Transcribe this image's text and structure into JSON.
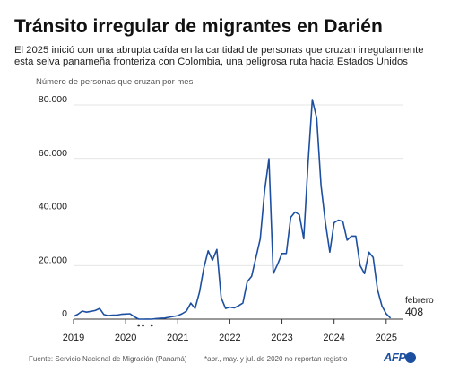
{
  "title": "Tránsito irregular de migrantes en Darién",
  "subtitle": "El 2025 inició con una abrupta caída en la cantidad de personas que cruzan irregularmente esta selva panameña fronteriza con Colombia,  una peligrosa ruta hacia Estados Unidos",
  "footer": {
    "source": "Fuente: Servicio Nacional de Migración (Panamá)",
    "note": "*abr., may. y jul. de 2020 no reportan registro",
    "logo": "AFP"
  },
  "colors": {
    "line": "#1d4fa0",
    "grid": "#dcdcdc",
    "text": "#1a1a1a",
    "logo": "#1d4fa0"
  },
  "chart_data": {
    "type": "line",
    "ylabel": "Número de personas que cruzan por mes",
    "ylim": [
      0,
      80000
    ],
    "yticks": [
      0,
      20000,
      40000,
      60000,
      80000
    ],
    "ytick_labels": [
      "0",
      "20.000",
      "40.000",
      "60.000",
      "80.000"
    ],
    "xlim": [
      2019,
      2025.33
    ],
    "xticks": [
      2019,
      2020,
      2021,
      2022,
      2023,
      2024,
      2025
    ],
    "xtick_labels": [
      "2019",
      "2020",
      "2021",
      "2022",
      "2023",
      "2024",
      "2025"
    ],
    "grid": true,
    "missing_markers": [
      2020.25,
      2020.333,
      2020.5
    ],
    "annotation": {
      "label": "febrero",
      "value": "408"
    },
    "series": [
      {
        "x": [
          2019.0,
          2019.083,
          2019.167,
          2019.25,
          2019.333,
          2019.417,
          2019.5,
          2019.583,
          2019.667,
          2019.75,
          2019.833,
          2019.917,
          2020.0,
          2020.083,
          2020.167,
          2020.25,
          2020.333,
          2020.417,
          2020.5,
          2020.583,
          2020.667,
          2020.75,
          2020.833,
          2020.917,
          2021.0,
          2021.083,
          2021.167,
          2021.25,
          2021.333,
          2021.417,
          2021.5,
          2021.583,
          2021.667,
          2021.75,
          2021.833,
          2021.917,
          2022.0,
          2022.083,
          2022.167,
          2022.25,
          2022.333,
          2022.417,
          2022.5,
          2022.583,
          2022.667,
          2022.75,
          2022.833,
          2022.917,
          2023.0,
          2023.083,
          2023.167,
          2023.25,
          2023.333,
          2023.417,
          2023.5,
          2023.583,
          2023.667,
          2023.75,
          2023.833,
          2023.917,
          2024.0,
          2024.083,
          2024.167,
          2024.25,
          2024.333,
          2024.417,
          2024.5,
          2024.583,
          2024.667,
          2024.75,
          2024.833,
          2024.917,
          2025.0,
          2025.083
        ],
        "y": [
          1000,
          1800,
          3000,
          2600,
          2900,
          3200,
          4000,
          1700,
          1300,
          1500,
          1500,
          1800,
          1900,
          2000,
          900,
          0,
          0,
          50,
          0,
          200,
          300,
          400,
          700,
          1000,
          1300,
          2000,
          3000,
          6000,
          4000,
          10000,
          19000,
          25500,
          22000,
          26000,
          8000,
          4000,
          4500,
          4200,
          5000,
          6000,
          14000,
          16000,
          23000,
          30000,
          48000,
          59900,
          17000,
          20500,
          24500,
          24500,
          38000,
          40000,
          39000,
          30000,
          58000,
          82000,
          75000,
          50000,
          36000,
          25000,
          36000,
          37000,
          36500,
          29500,
          31000,
          31000,
          20000,
          17000,
          25000,
          23000,
          11000,
          5000,
          2000,
          408
        ]
      }
    ]
  }
}
